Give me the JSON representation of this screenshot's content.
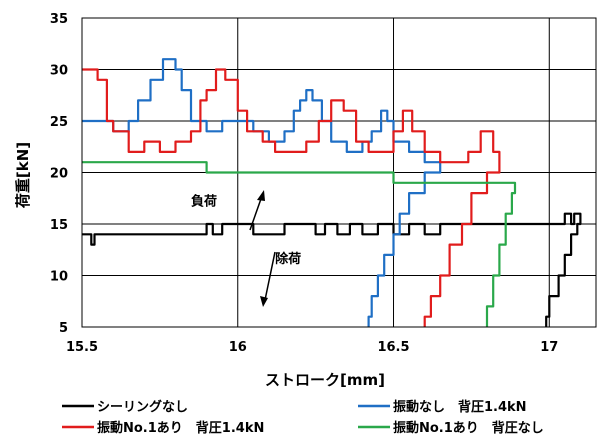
{
  "chart_data": {
    "type": "line",
    "xlabel": "ストローク[mm]",
    "ylabel": "荷重[kN]",
    "xlim": [
      15.5,
      17.15
    ],
    "ylim": [
      5,
      35
    ],
    "xticks": [
      15.5,
      16,
      16.5,
      17
    ],
    "x_tick_labels": [
      "15.5",
      "16",
      "16.5",
      "17"
    ],
    "yticks": [
      5,
      10,
      15,
      20,
      25,
      30,
      35
    ],
    "y_tick_labels": [
      "5",
      "10",
      "15",
      "20",
      "25",
      "30",
      "35"
    ],
    "grid": true,
    "legend_position": "bottom",
    "annotations": [
      {
        "text": "負荷",
        "x": 15.85,
        "y": 16.8
      },
      {
        "text": "除荷",
        "x": 16.12,
        "y": 11.2
      }
    ],
    "series": [
      {
        "name": "シーリングなし",
        "color": "#000000",
        "points": [
          [
            15.5,
            14.0
          ],
          [
            15.52,
            14.0
          ],
          [
            15.53,
            13.0
          ],
          [
            15.54,
            14.0
          ],
          [
            15.7,
            14.0
          ],
          [
            15.85,
            14.0
          ],
          [
            15.88,
            14.0
          ],
          [
            15.9,
            15.0
          ],
          [
            15.92,
            14.0
          ],
          [
            15.95,
            15.0
          ],
          [
            16.0,
            15.0
          ],
          [
            16.05,
            14.0
          ],
          [
            16.1,
            14.0
          ],
          [
            16.15,
            15.0
          ],
          [
            16.2,
            15.0
          ],
          [
            16.25,
            14.0
          ],
          [
            16.28,
            15.0
          ],
          [
            16.32,
            14.0
          ],
          [
            16.36,
            15.0
          ],
          [
            16.4,
            14.0
          ],
          [
            16.45,
            15.0
          ],
          [
            16.5,
            14.0
          ],
          [
            16.55,
            15.0
          ],
          [
            16.6,
            14.0
          ],
          [
            16.65,
            15.0
          ],
          [
            16.8,
            15.0
          ],
          [
            17.0,
            15.0
          ],
          [
            17.05,
            16.0
          ],
          [
            17.07,
            15.0
          ],
          [
            17.08,
            16.0
          ],
          [
            17.1,
            15.0
          ],
          [
            17.09,
            14.0
          ],
          [
            17.07,
            12.0
          ],
          [
            17.05,
            10.0
          ],
          [
            17.03,
            8.0
          ],
          [
            17.0,
            6.0
          ],
          [
            16.99,
            5.0
          ]
        ]
      },
      {
        "name": "振動なし　背圧1.4kN",
        "color": "#1f6fc5",
        "points": [
          [
            15.5,
            25.0
          ],
          [
            15.55,
            25.0
          ],
          [
            15.6,
            24.0
          ],
          [
            15.65,
            25.0
          ],
          [
            15.68,
            27.0
          ],
          [
            15.72,
            29.0
          ],
          [
            15.76,
            31.0
          ],
          [
            15.8,
            30.0
          ],
          [
            15.82,
            28.0
          ],
          [
            15.85,
            25.0
          ],
          [
            15.9,
            24.0
          ],
          [
            15.95,
            25.0
          ],
          [
            16.0,
            25.0
          ],
          [
            16.05,
            24.0
          ],
          [
            16.1,
            23.0
          ],
          [
            16.15,
            24.0
          ],
          [
            16.18,
            26.0
          ],
          [
            16.2,
            27.0
          ],
          [
            16.22,
            28.0
          ],
          [
            16.24,
            27.0
          ],
          [
            16.27,
            25.0
          ],
          [
            16.3,
            23.0
          ],
          [
            16.35,
            22.0
          ],
          [
            16.4,
            23.0
          ],
          [
            16.43,
            24.0
          ],
          [
            16.46,
            26.0
          ],
          [
            16.48,
            25.0
          ],
          [
            16.5,
            23.0
          ],
          [
            16.55,
            22.0
          ],
          [
            16.6,
            21.0
          ],
          [
            16.65,
            20.0
          ],
          [
            16.6,
            18.0
          ],
          [
            16.55,
            16.0
          ],
          [
            16.52,
            14.0
          ],
          [
            16.5,
            12.0
          ],
          [
            16.47,
            10.0
          ],
          [
            16.45,
            8.0
          ],
          [
            16.43,
            6.0
          ],
          [
            16.42,
            5.0
          ]
        ]
      },
      {
        "name": "振動No.1あり　背圧1.4kN",
        "color": "#e11c1c",
        "points": [
          [
            15.5,
            30.0
          ],
          [
            15.55,
            29.0
          ],
          [
            15.58,
            25.0
          ],
          [
            15.6,
            24.0
          ],
          [
            15.65,
            22.0
          ],
          [
            15.7,
            23.0
          ],
          [
            15.75,
            22.0
          ],
          [
            15.8,
            23.0
          ],
          [
            15.85,
            24.0
          ],
          [
            15.88,
            27.0
          ],
          [
            15.9,
            28.0
          ],
          [
            15.93,
            30.0
          ],
          [
            15.96,
            29.0
          ],
          [
            16.0,
            26.0
          ],
          [
            16.03,
            24.0
          ],
          [
            16.08,
            23.0
          ],
          [
            16.12,
            22.0
          ],
          [
            16.18,
            22.0
          ],
          [
            16.22,
            23.0
          ],
          [
            16.26,
            25.0
          ],
          [
            16.3,
            27.0
          ],
          [
            16.34,
            26.0
          ],
          [
            16.38,
            23.0
          ],
          [
            16.42,
            22.0
          ],
          [
            16.46,
            22.0
          ],
          [
            16.5,
            24.0
          ],
          [
            16.53,
            26.0
          ],
          [
            16.56,
            24.0
          ],
          [
            16.6,
            22.0
          ],
          [
            16.65,
            21.0
          ],
          [
            16.7,
            21.0
          ],
          [
            16.74,
            22.0
          ],
          [
            16.78,
            24.0
          ],
          [
            16.82,
            22.0
          ],
          [
            16.84,
            20.0
          ],
          [
            16.8,
            18.0
          ],
          [
            16.75,
            15.0
          ],
          [
            16.72,
            13.0
          ],
          [
            16.68,
            10.0
          ],
          [
            16.65,
            8.0
          ],
          [
            16.62,
            6.0
          ],
          [
            16.6,
            5.0
          ]
        ]
      },
      {
        "name": "振動No.1あり　背圧なし",
        "color": "#2aa84a",
        "points": [
          [
            15.5,
            21.0
          ],
          [
            15.6,
            21.0
          ],
          [
            15.7,
            21.0
          ],
          [
            15.8,
            21.0
          ],
          [
            15.85,
            21.0
          ],
          [
            15.9,
            20.0
          ],
          [
            16.0,
            20.0
          ],
          [
            16.05,
            20.0
          ],
          [
            16.1,
            20.0
          ],
          [
            16.2,
            20.0
          ],
          [
            16.3,
            20.0
          ],
          [
            16.4,
            20.0
          ],
          [
            16.5,
            19.0
          ],
          [
            16.6,
            19.0
          ],
          [
            16.7,
            19.0
          ],
          [
            16.8,
            19.0
          ],
          [
            16.88,
            19.0
          ],
          [
            16.89,
            18.0
          ],
          [
            16.88,
            16.0
          ],
          [
            16.86,
            13.0
          ],
          [
            16.84,
            10.0
          ],
          [
            16.82,
            7.0
          ],
          [
            16.8,
            5.0
          ]
        ]
      }
    ]
  }
}
